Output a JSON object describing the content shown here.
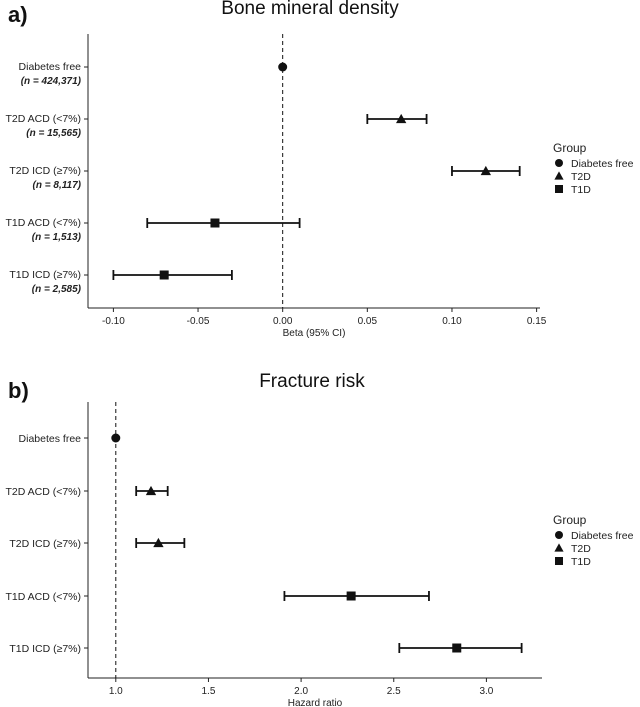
{
  "chart_data": [
    {
      "panel": "a)",
      "type": "forest",
      "title": "Bone mineral density",
      "xlabel": "Beta (95% CI)",
      "xlim": [
        -0.115,
        0.152
      ],
      "x_ticks": [
        -0.1,
        -0.05,
        0.0,
        0.05,
        0.1,
        0.15
      ],
      "x_tick_labels": [
        "-0.10",
        "-0.05",
        "0.00",
        "0.05",
        "0.10",
        "0.15"
      ],
      "reference_value": 0,
      "categories": [
        {
          "label": "Diabetes free",
          "n": "(n = 424,371)",
          "group": "Diabetes free",
          "estimate": 0.0,
          "lower": null,
          "upper": null
        },
        {
          "label": "T2D ACD (<7%)",
          "n": "(n = 15,565)",
          "group": "T2D",
          "estimate": 0.07,
          "lower": 0.05,
          "upper": 0.085
        },
        {
          "label": "T2D ICD (≥7%)",
          "n": "(n = 8,117)",
          "group": "T2D",
          "estimate": 0.12,
          "lower": 0.1,
          "upper": 0.14
        },
        {
          "label": "T1D ACD (<7%)",
          "n": "(n = 1,513)",
          "group": "T1D",
          "estimate": -0.04,
          "lower": -0.08,
          "upper": 0.01
        },
        {
          "label": "T1D ICD (≥7%)",
          "n": "(n = 2,585)",
          "group": "T1D",
          "estimate": -0.07,
          "lower": -0.1,
          "upper": -0.03
        }
      ],
      "legend": {
        "title": "Group",
        "placement": "right",
        "entries": [
          {
            "label": "Diabetes free",
            "shape": "circle"
          },
          {
            "label": "T2D",
            "shape": "triangle"
          },
          {
            "label": "T1D",
            "shape": "square"
          }
        ]
      }
    },
    {
      "panel": "b)",
      "type": "forest",
      "title": "Fracture risk",
      "xlabel": "Hazard ratio",
      "xlim": [
        0.85,
        3.3
      ],
      "x_ticks": [
        1.0,
        1.5,
        2.0,
        2.5,
        3.0
      ],
      "x_tick_labels": [
        "1.0",
        "1.5",
        "2.0",
        "2.5",
        "3.0"
      ],
      "reference_value": 1,
      "categories": [
        {
          "label": "Diabetes free",
          "n": "",
          "group": "Diabetes free",
          "estimate": 1.0,
          "lower": null,
          "upper": null
        },
        {
          "label": "T2D ACD (<7%)",
          "n": "",
          "group": "T2D",
          "estimate": 1.19,
          "lower": 1.11,
          "upper": 1.28
        },
        {
          "label": "T2D ICD (≥7%)",
          "n": "",
          "group": "T2D",
          "estimate": 1.23,
          "lower": 1.11,
          "upper": 1.37
        },
        {
          "label": "T1D ACD (<7%)",
          "n": "",
          "group": "T1D",
          "estimate": 2.27,
          "lower": 1.91,
          "upper": 2.69
        },
        {
          "label": "T1D ICD (≥7%)",
          "n": "",
          "group": "T1D",
          "estimate": 2.84,
          "lower": 2.53,
          "upper": 3.19
        }
      ],
      "legend": {
        "title": "Group",
        "placement": "right",
        "entries": [
          {
            "label": "Diabetes free",
            "shape": "circle"
          },
          {
            "label": "T2D",
            "shape": "triangle"
          },
          {
            "label": "T1D",
            "shape": "square"
          }
        ]
      }
    }
  ]
}
